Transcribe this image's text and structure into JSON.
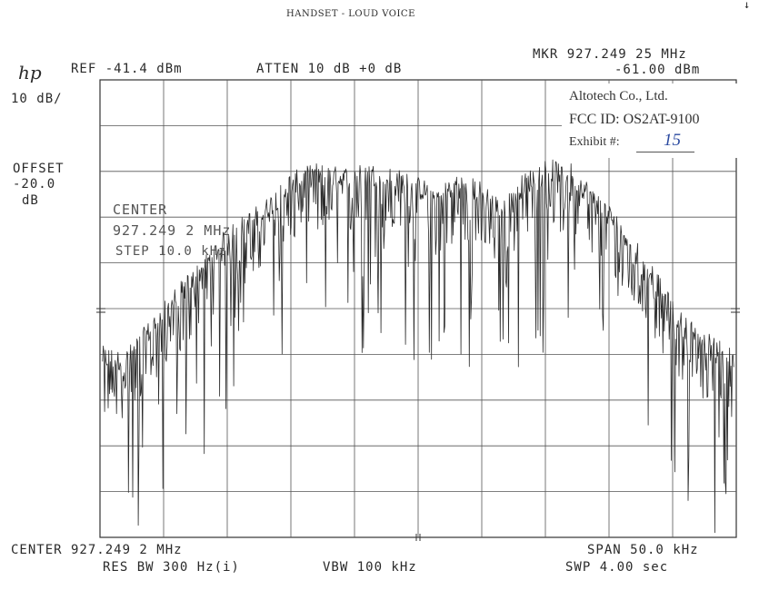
{
  "header": {
    "title": "HANDSET - LOUD VOICE",
    "corner_mark": "↓",
    "logo": "hp",
    "ref_level": "REF -41.4 dBm",
    "attenuation": "ATTEN 10 dB +0 dB",
    "marker_freq": "MKR 927.249 25 MHz",
    "marker_level": "-61.00 dBm"
  },
  "left_panel": {
    "scale": "10 dB/",
    "offset_label": "OFFSET",
    "offset_value": "-20.0",
    "offset_unit": "dB"
  },
  "overlay": {
    "center_label": "CENTER",
    "center_value": "927.249 2 MHz",
    "step": "STEP 10.0 kHz"
  },
  "stamp": {
    "company": "Altotech Co., Ltd.",
    "fcc_id": "FCC ID: OS2AT-9100",
    "exhibit_label": "Exhibit #:",
    "exhibit_number": "15"
  },
  "footer": {
    "center": "CENTER 927.249 2 MHz",
    "res_bw": "RES BW 300 Hz(i)",
    "vbw": "VBW 100 kHz",
    "span": "SPAN 50.0 kHz",
    "sweep": "SWP 4.00 sec"
  },
  "chart_data": {
    "type": "line",
    "x_unit": "MHz",
    "y_unit": "dBm",
    "x_range": [
      927.224,
      927.274
    ],
    "ylim": [
      -141.4,
      -41.4
    ],
    "grid": true,
    "grid_divisions": {
      "x": 10,
      "y": 10
    },
    "trace_color": "#2a2a2a",
    "series": [
      {
        "values": [
          {
            "x": 927.2242,
            "y": -103
          },
          {
            "x": 927.226,
            "y": -104
          },
          {
            "x": 927.228,
            "y": -97
          },
          {
            "x": 927.23,
            "y": -90
          },
          {
            "x": 927.232,
            "y": -84
          },
          {
            "x": 927.234,
            "y": -77
          },
          {
            "x": 927.235,
            "y": -75
          },
          {
            "x": 927.237,
            "y": -71
          },
          {
            "x": 927.239,
            "y": -65
          },
          {
            "x": 927.241,
            "y": -63
          },
          {
            "x": 927.243,
            "y": -64
          },
          {
            "x": 927.245,
            "y": -63
          },
          {
            "x": 927.247,
            "y": -64
          },
          {
            "x": 927.249,
            "y": -66
          },
          {
            "x": 927.2505,
            "y": -68
          },
          {
            "x": 927.252,
            "y": -65
          },
          {
            "x": 927.254,
            "y": -67
          },
          {
            "x": 927.2555,
            "y": -71
          },
          {
            "x": 927.257,
            "y": -66
          },
          {
            "x": 927.259,
            "y": -62
          },
          {
            "x": 927.261,
            "y": -63
          },
          {
            "x": 927.263,
            "y": -69
          },
          {
            "x": 927.265,
            "y": -75
          },
          {
            "x": 927.267,
            "y": -83
          },
          {
            "x": 927.269,
            "y": -93
          },
          {
            "x": 927.271,
            "y": -99
          },
          {
            "x": 927.2725,
            "y": -101
          },
          {
            "x": 927.2738,
            "y": -104
          }
        ]
      }
    ]
  }
}
